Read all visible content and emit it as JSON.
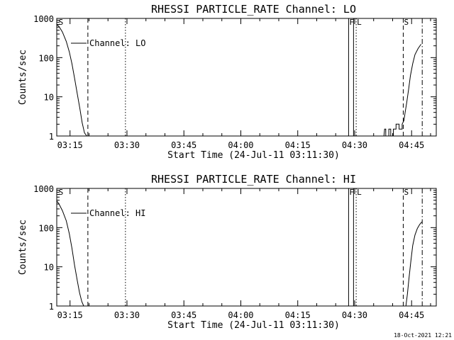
{
  "footer": {
    "timestamp": "18-Oct-2021 12:21"
  },
  "chart_data": [
    {
      "type": "line",
      "title": "RHESSI PARTICLE_RATE Channel: LO",
      "xlabel": "Start Time (24-Jul-11 03:11:30)",
      "ylabel": "Counts/sec",
      "yscale": "log",
      "ylim": [
        1,
        1000
      ],
      "xlim_minutes_after_start": [
        0,
        100
      ],
      "x_ticks": [
        {
          "label": "03:15",
          "t": 3.5
        },
        {
          "label": "03:30",
          "t": 18.5
        },
        {
          "label": "03:45",
          "t": 33.5
        },
        {
          "label": "04:00",
          "t": 48.5
        },
        {
          "label": "04:15",
          "t": 63.5
        },
        {
          "label": "04:30",
          "t": 78.5
        },
        {
          "label": "04:45",
          "t": 93.5
        }
      ],
      "y_ticks": [
        {
          "label": "1",
          "v": 1
        },
        {
          "label": "10",
          "v": 10
        },
        {
          "label": "100",
          "v": 100
        },
        {
          "label": "1000",
          "v": 1000
        }
      ],
      "legend": "Channel: LO",
      "markers": [
        {
          "label": "S",
          "t": 0.3,
          "style": "none"
        },
        {
          "label": "",
          "t": 8.2,
          "style": "dashed"
        },
        {
          "label": "",
          "t": 18.1,
          "style": "dotted"
        },
        {
          "label": "F",
          "t": 76.9,
          "style": "solid"
        },
        {
          "label": "",
          "t": 78.2,
          "style": "solid"
        },
        {
          "label": "L",
          "t": 78.9,
          "style": "dotted"
        },
        {
          "label": "S",
          "t": 91.3,
          "style": "dashed"
        },
        {
          "label": "",
          "t": 96.3,
          "style": "dashdot"
        }
      ],
      "series": [
        {
          "name": "Channel: LO",
          "segments": [
            {
              "x": [
                0,
                0.6,
                1.5,
                2.5,
                3.3,
                4.0,
                4.7,
                5.4,
                6.1,
                6.7,
                7.3,
                7.9
              ],
              "y": [
                700,
                620,
                450,
                260,
                140,
                70,
                30,
                12,
                5,
                2.2,
                1.2,
                1
              ]
            },
            {
              "x": [
                86.2,
                86.4,
                86.7,
                86.7,
                87.5,
                87.5,
                88.0,
                88.0,
                88.7,
                88.7,
                89.4,
                89.4,
                90.2,
                90.2,
                91.0,
                91.0,
                91.5,
                91.8,
                92.2,
                92.7,
                93.2,
                93.8,
                94.4,
                95.2,
                96.0
              ],
              "y": [
                1,
                1.5,
                1.5,
                1,
                1,
                1.5,
                1.5,
                1,
                1,
                1.5,
                1.5,
                2,
                2,
                1.5,
                1.5,
                2,
                2.5,
                4,
                7,
                15,
                35,
                70,
                120,
                170,
                220
              ]
            }
          ]
        }
      ]
    },
    {
      "type": "line",
      "title": "RHESSI PARTICLE_RATE Channel: HI",
      "xlabel": "Start Time (24-Jul-11 03:11:30)",
      "ylabel": "Counts/sec",
      "yscale": "log",
      "ylim": [
        1,
        1000
      ],
      "xlim_minutes_after_start": [
        0,
        100
      ],
      "x_ticks": [
        {
          "label": "03:15",
          "t": 3.5
        },
        {
          "label": "03:30",
          "t": 18.5
        },
        {
          "label": "03:45",
          "t": 33.5
        },
        {
          "label": "04:00",
          "t": 48.5
        },
        {
          "label": "04:15",
          "t": 63.5
        },
        {
          "label": "04:30",
          "t": 78.5
        },
        {
          "label": "04:45",
          "t": 93.5
        }
      ],
      "y_ticks": [
        {
          "label": "1",
          "v": 1
        },
        {
          "label": "10",
          "v": 10
        },
        {
          "label": "100",
          "v": 100
        },
        {
          "label": "1000",
          "v": 1000
        }
      ],
      "legend": "Channel: HI",
      "markers": [
        {
          "label": "S",
          "t": 0.3,
          "style": "none"
        },
        {
          "label": "",
          "t": 8.2,
          "style": "dashed"
        },
        {
          "label": "",
          "t": 18.1,
          "style": "dotted"
        },
        {
          "label": "F",
          "t": 76.9,
          "style": "solid"
        },
        {
          "label": "",
          "t": 78.2,
          "style": "solid"
        },
        {
          "label": "L",
          "t": 78.9,
          "style": "dotted"
        },
        {
          "label": "S",
          "t": 91.3,
          "style": "dashed"
        },
        {
          "label": "",
          "t": 96.3,
          "style": "dashdot"
        }
      ],
      "series": [
        {
          "name": "Channel: HI",
          "segments": [
            {
              "x": [
                0,
                0.6,
                1.5,
                2.5,
                3.3,
                4.0,
                4.7,
                5.4,
                6.0,
                6.6,
                7.1
              ],
              "y": [
                480,
                400,
                270,
                150,
                70,
                30,
                11,
                4.5,
                2.2,
                1.3,
                1
              ]
            },
            {
              "x": [
                92.0,
                92.4,
                92.8,
                93.3,
                93.8,
                94.4,
                95.0,
                95.6,
                96.2
              ],
              "y": [
                1,
                2,
                5,
                14,
                35,
                65,
                95,
                120,
                140
              ]
            }
          ]
        }
      ]
    }
  ]
}
